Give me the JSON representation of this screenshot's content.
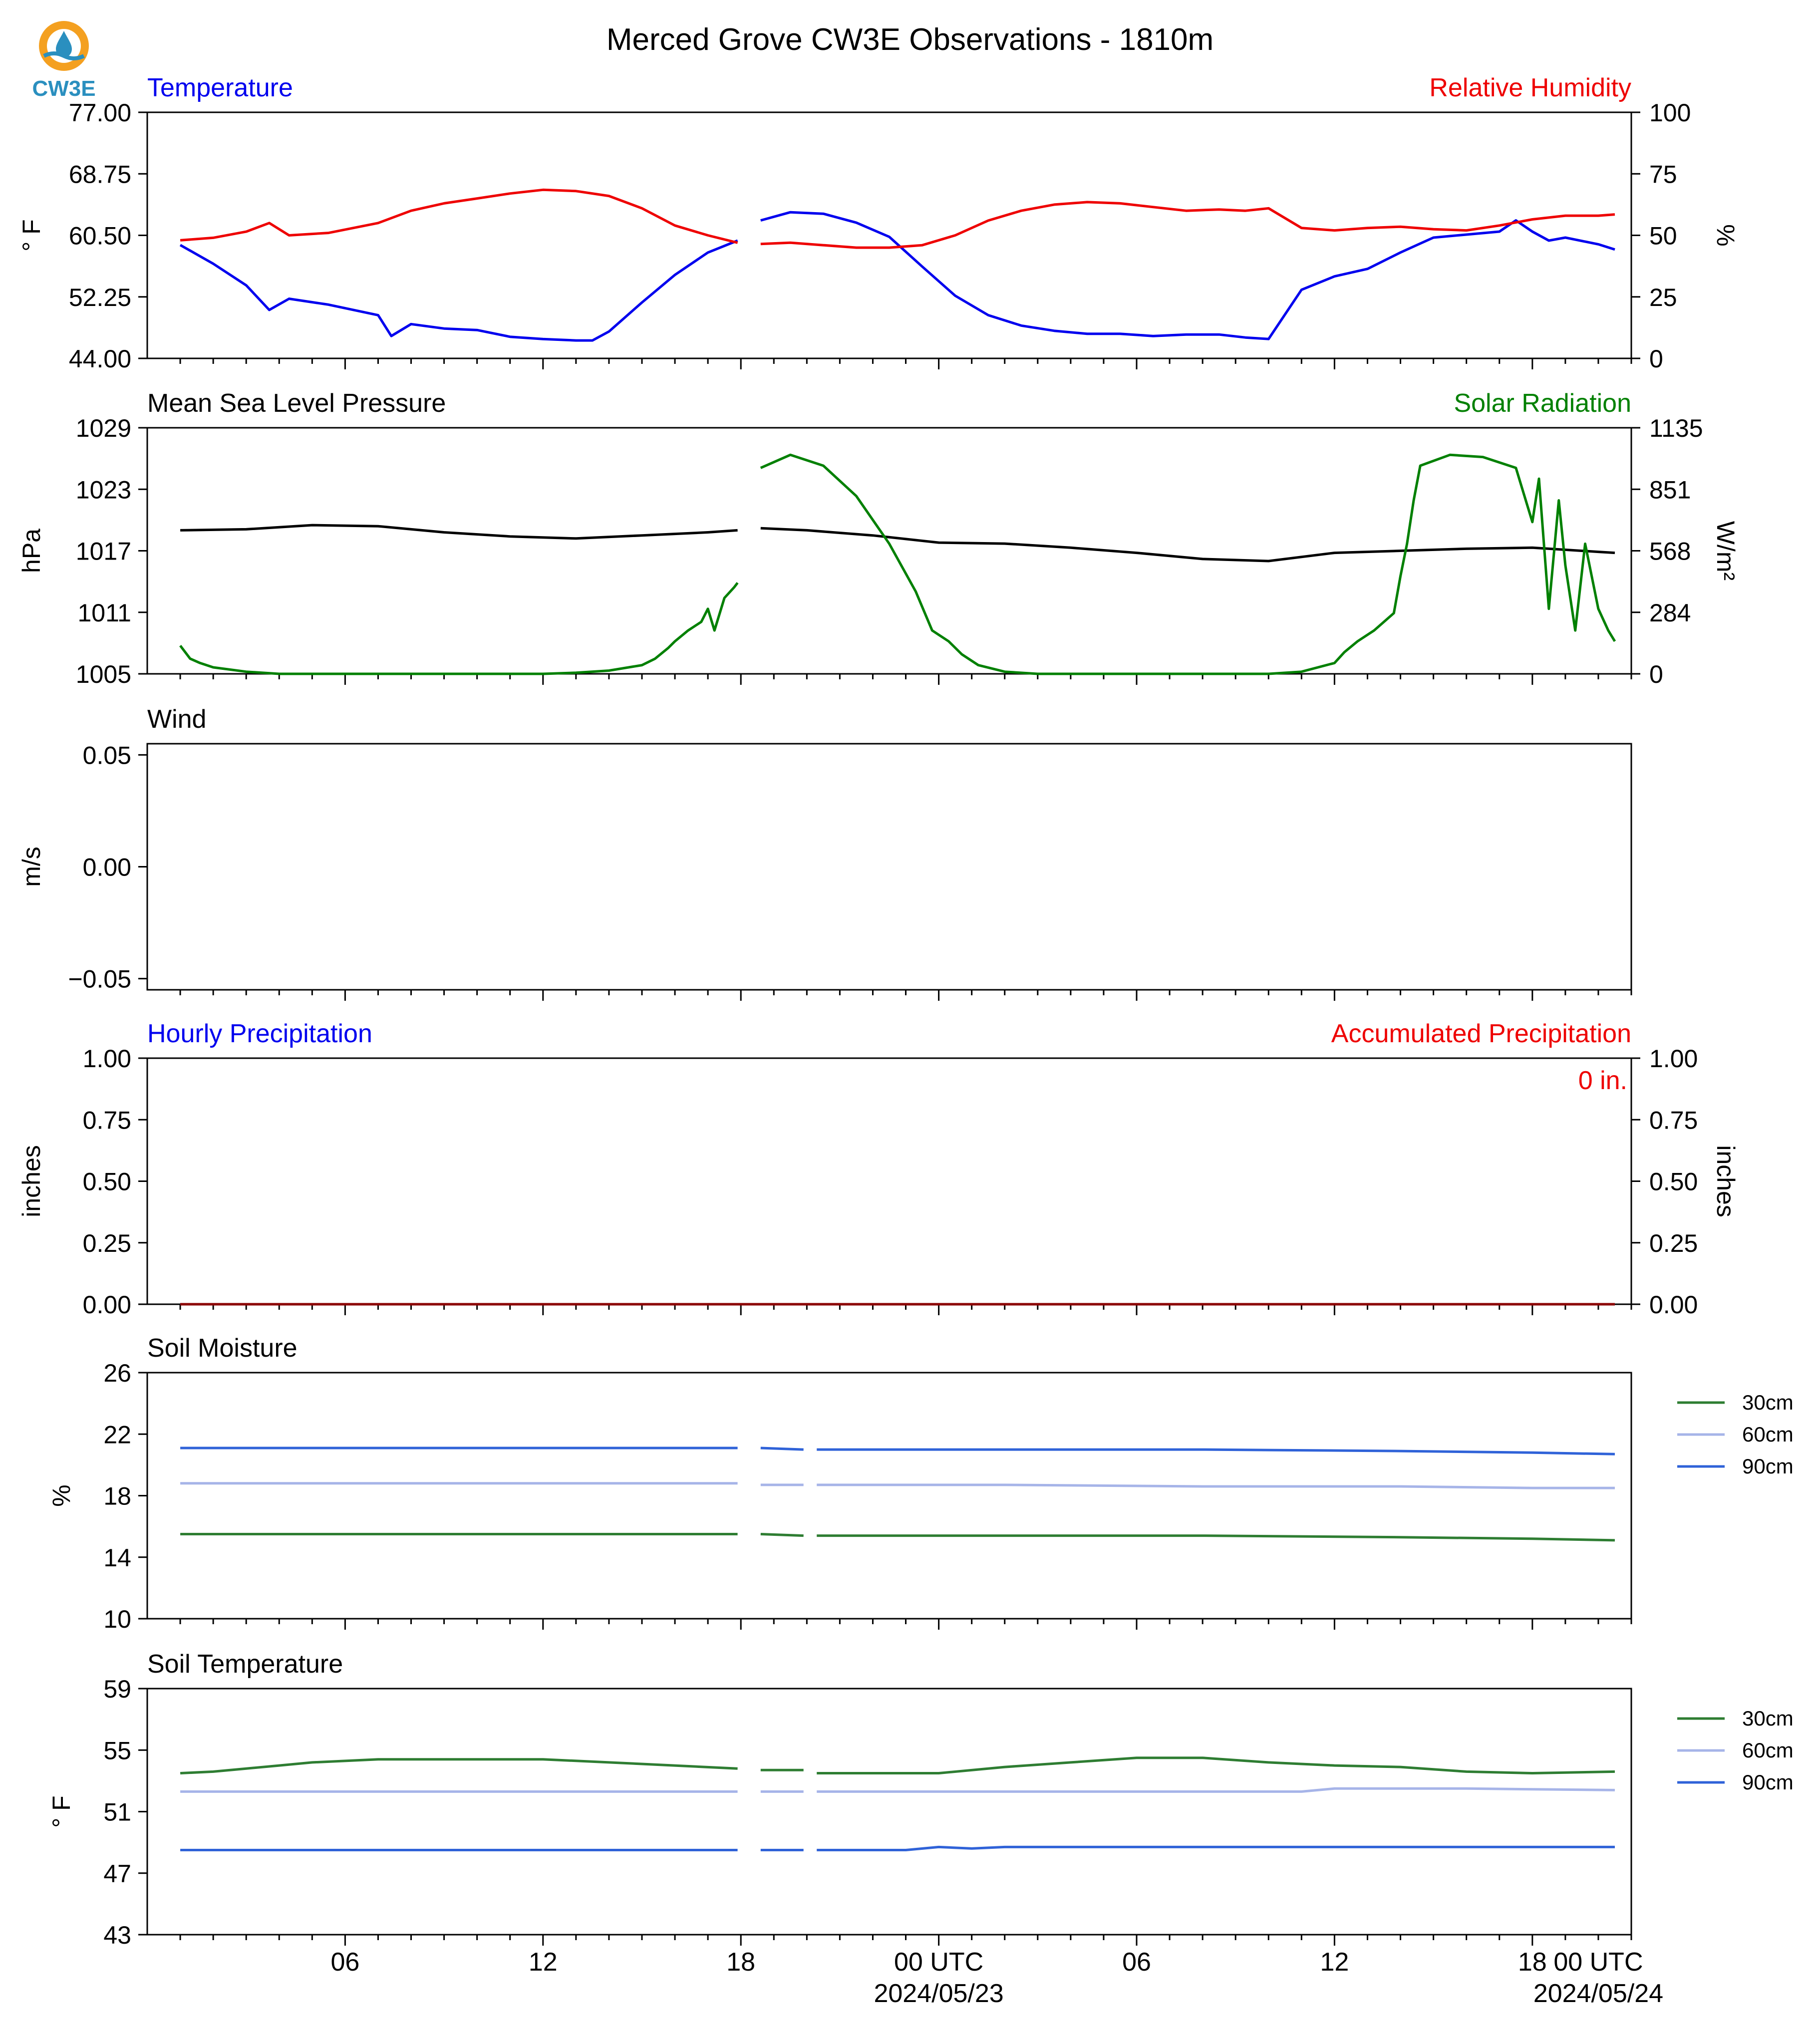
{
  "title": "Merced Grove CW3E Observations - 1810m",
  "logo": {
    "text": "CW3E",
    "ring_color": "#F4A020",
    "drop_color": "#2A8FBF",
    "text_color": "#2A8FBF"
  },
  "time_axis": {
    "hours": [
      "06",
      "12",
      "18",
      "00 UTC",
      "06",
      "12",
      "18",
      "00 UTC"
    ],
    "dates": [
      "2024/05/23",
      "2024/05/24"
    ]
  },
  "chart_data": [
    {
      "type": "line",
      "title_left": "Temperature",
      "title_right": "Relative Humidity",
      "ylabel_left": "° F",
      "ylabel_right": "%",
      "ylim_left": [
        44,
        77
      ],
      "ylim_right": [
        0,
        100
      ],
      "yticks_left": [
        "77.00",
        "68.75",
        "60.50",
        "52.25",
        "44.00"
      ],
      "yticks_right": [
        "100",
        "75",
        "50",
        "25",
        "0"
      ],
      "grid": false,
      "gap_hours": [
        17.9,
        18.6
      ],
      "series": [
        {
          "name": "Temperature",
          "axis": "left",
          "color": "#0000EE",
          "hours": [
            1,
            2,
            3,
            3.7,
            4.3,
            5.5,
            7,
            7.4,
            8,
            9,
            10,
            11,
            12,
            13,
            13.5,
            14,
            15,
            16,
            17,
            17.9,
            18.6,
            19.5,
            20.5,
            21.5,
            22.5,
            23.5,
            24.5,
            25.5,
            26.5,
            27.5,
            28.5,
            29.5,
            30.5,
            31.5,
            32.5,
            33.3,
            34,
            35,
            36,
            37,
            38,
            38.6,
            39,
            40,
            41,
            41.5,
            42,
            42.5,
            43,
            44,
            44.5
          ],
          "values": [
            59.2,
            56.7,
            53.8,
            50.5,
            52.0,
            51.2,
            49.8,
            47.0,
            48.6,
            48.0,
            47.8,
            46.9,
            46.6,
            46.4,
            46.4,
            47.6,
            51.5,
            55.2,
            58.2,
            59.8,
            62.5,
            63.6,
            63.4,
            62.2,
            60.3,
            56.3,
            52.4,
            49.8,
            48.4,
            47.7,
            47.3,
            47.3,
            47.0,
            47.2,
            47.2,
            46.8,
            46.6,
            53.2,
            55.0,
            56.0,
            58.2,
            59.4,
            60.2,
            60.6,
            61.0,
            62.5,
            61.0,
            59.8,
            60.2,
            59.3,
            58.6
          ]
        },
        {
          "name": "Relative Humidity",
          "axis": "right",
          "color": "#EE0000",
          "hours": [
            1,
            2,
            3,
            3.7,
            4.3,
            5.5,
            7,
            8,
            9,
            10,
            11,
            12,
            13,
            14,
            15,
            16,
            17,
            17.9,
            18.6,
            19.5,
            20.5,
            21.5,
            22.5,
            23.5,
            24.5,
            25.5,
            26.5,
            27.5,
            28.5,
            29.5,
            30.5,
            31.5,
            32.5,
            33.3,
            34,
            35,
            36,
            37,
            38,
            39,
            40,
            41,
            42,
            43,
            44,
            44.5
          ],
          "values": [
            48.0,
            49.0,
            51.5,
            55.0,
            50.0,
            51.0,
            55.0,
            60.0,
            63.0,
            65.0,
            67.0,
            68.5,
            68.0,
            66.0,
            61.0,
            54.0,
            50.0,
            47.0,
            46.5,
            47.0,
            46.0,
            45.0,
            45.0,
            46.0,
            50.0,
            56.0,
            60.0,
            62.5,
            63.5,
            63.0,
            61.5,
            60.0,
            60.5,
            60.0,
            61.0,
            53.0,
            52.0,
            53.0,
            53.5,
            52.5,
            52.0,
            54.0,
            56.5,
            58.0,
            58.0,
            58.5
          ]
        }
      ]
    },
    {
      "type": "line",
      "title_left": "Mean Sea Level Pressure",
      "title_right": "Solar Radiation",
      "ylabel_left": "hPa",
      "ylabel_right": "W/m²",
      "ylim_left": [
        1005,
        1029
      ],
      "ylim_right": [
        0,
        1135
      ],
      "yticks_left": [
        "1029",
        "1023",
        "1017",
        "1011",
        "1005"
      ],
      "yticks_right": [
        "1135",
        "851",
        "568",
        "284",
        "0"
      ],
      "grid": false,
      "gap_hours": [
        17.9,
        18.6
      ],
      "series": [
        {
          "name": "Mean Sea Level Pressure",
          "axis": "left",
          "color": "#000000",
          "hours": [
            1,
            3,
            5,
            7,
            9,
            11,
            13,
            15,
            17,
            17.9,
            18.6,
            20,
            22,
            24,
            26,
            28,
            30,
            32,
            34,
            36,
            38,
            40,
            42,
            44,
            44.5
          ],
          "values": [
            1019.0,
            1019.1,
            1019.5,
            1019.4,
            1018.8,
            1018.4,
            1018.2,
            1018.5,
            1018.8,
            1019.0,
            1019.2,
            1019.0,
            1018.5,
            1017.8,
            1017.7,
            1017.3,
            1016.8,
            1016.2,
            1016.0,
            1016.8,
            1017.0,
            1017.2,
            1017.3,
            1016.9,
            1016.8
          ]
        },
        {
          "name": "Solar Radiation",
          "axis": "right",
          "color": "#008000",
          "hours": [
            1,
            1.3,
            1.6,
            2,
            3,
            4,
            6,
            8,
            10,
            12,
            13,
            14,
            15,
            15.4,
            15.8,
            16,
            16.4,
            16.8,
            17,
            17.2,
            17.5,
            17.8,
            17.9,
            18.6,
            19.5,
            20.5,
            21.5,
            22.5,
            23.3,
            23.8,
            24,
            24.3,
            24.7,
            25.2,
            26,
            27,
            28,
            30,
            32,
            34,
            35,
            36,
            36.3,
            36.7,
            37.2,
            37.8,
            38,
            38.2,
            38.4,
            38.6,
            39.5,
            40.5,
            41.5,
            42,
            42.2,
            42.5,
            42.8,
            43,
            43.3,
            43.6,
            44,
            44.3,
            44.5
          ],
          "values": [
            130,
            70,
            50,
            30,
            10,
            0,
            0,
            0,
            0,
            0,
            5,
            15,
            40,
            70,
            120,
            150,
            200,
            240,
            300,
            200,
            350,
            400,
            420,
            950,
            1010,
            960,
            820,
            600,
            380,
            200,
            180,
            150,
            90,
            40,
            10,
            0,
            0,
            0,
            0,
            0,
            10,
            50,
            100,
            150,
            200,
            280,
            450,
            600,
            800,
            960,
            1010,
            1000,
            950,
            700,
            900,
            300,
            800,
            500,
            200,
            600,
            300,
            200,
            150
          ]
        }
      ]
    },
    {
      "type": "line",
      "title_left": "Wind",
      "ylabel_left": "m/s",
      "ylim_left": [
        -0.055,
        0.055
      ],
      "yticks_left": [
        "0.05",
        "0.00",
        "−0.05"
      ],
      "grid": false,
      "series": []
    },
    {
      "type": "bar",
      "title_left": "Hourly Precipitation",
      "title_right": "Accumulated Precipitation",
      "ylabel_left": "inches",
      "ylabel_right": "inches",
      "ylim_left": [
        0,
        1
      ],
      "ylim_right": [
        0,
        1
      ],
      "yticks_left": [
        "1.00",
        "0.75",
        "0.50",
        "0.25",
        "0.00"
      ],
      "yticks_right": [
        "1.00",
        "0.75",
        "0.50",
        "0.25",
        "0.00"
      ],
      "annotation": "0 in.",
      "grid": false,
      "series": [
        {
          "name": "Hourly Precipitation",
          "axis": "left",
          "color": "#0000EE",
          "hours": [
            1,
            44.5
          ],
          "values": [
            0,
            0
          ]
        },
        {
          "name": "Accumulated Precipitation",
          "axis": "right",
          "color": "#8B0000",
          "hours": [
            1,
            44.5
          ],
          "values": [
            0,
            0
          ]
        }
      ]
    },
    {
      "type": "line",
      "title_left": "Soil Moisture",
      "ylabel_left": "%",
      "ylim_left": [
        10,
        26
      ],
      "yticks_left": [
        "26",
        "22",
        "18",
        "14",
        "10"
      ],
      "legend": [
        "30cm",
        "60cm",
        "90cm"
      ],
      "legend_placement": "outside-right",
      "grid": false,
      "gap_hours": [
        [
          17.9,
          18.6
        ],
        [
          19.9,
          20.3
        ]
      ],
      "series": [
        {
          "name": "30cm",
          "axis": "left",
          "color": "#2E7D32",
          "hours": [
            1,
            6,
            12,
            17.9,
            18.6,
            19.9,
            20.3,
            26,
            32,
            38,
            42,
            44.5
          ],
          "values": [
            15.5,
            15.5,
            15.5,
            15.5,
            15.5,
            15.4,
            15.4,
            15.4,
            15.4,
            15.3,
            15.2,
            15.1
          ]
        },
        {
          "name": "60cm",
          "axis": "left",
          "color": "#A6B4E8",
          "hours": [
            1,
            6,
            12,
            17.9,
            18.6,
            19.9,
            20.3,
            26,
            32,
            38,
            42,
            44.5
          ],
          "values": [
            18.8,
            18.8,
            18.8,
            18.8,
            18.7,
            18.7,
            18.7,
            18.7,
            18.6,
            18.6,
            18.5,
            18.5
          ]
        },
        {
          "name": "90cm",
          "axis": "left",
          "color": "#2F62D8",
          "hours": [
            1,
            6,
            12,
            17.9,
            18.6,
            19.9,
            20.3,
            26,
            32,
            38,
            42,
            44.5
          ],
          "values": [
            21.1,
            21.1,
            21.1,
            21.1,
            21.1,
            21.0,
            21.0,
            21.0,
            21.0,
            20.9,
            20.8,
            20.7
          ]
        }
      ]
    },
    {
      "type": "line",
      "title_left": "Soil Temperature",
      "ylabel_left": "° F",
      "ylim_left": [
        43,
        59
      ],
      "yticks_left": [
        "59",
        "55",
        "51",
        "47",
        "43"
      ],
      "legend": [
        "30cm",
        "60cm",
        "90cm"
      ],
      "legend_placement": "outside-right",
      "grid": false,
      "gap_hours": [
        [
          17.9,
          18.6
        ],
        [
          19.9,
          20.3
        ]
      ],
      "series": [
        {
          "name": "30cm",
          "axis": "left",
          "color": "#2E7D32",
          "hours": [
            1,
            2,
            3,
            4,
            5,
            7,
            12,
            15,
            17.9,
            18.6,
            19.9,
            20.3,
            24,
            26,
            28,
            30,
            32,
            34,
            36,
            38,
            40,
            42,
            44.5
          ],
          "values": [
            53.5,
            53.6,
            53.8,
            54.0,
            54.2,
            54.4,
            54.4,
            54.1,
            53.8,
            53.7,
            53.7,
            53.5,
            53.5,
            53.9,
            54.2,
            54.5,
            54.5,
            54.2,
            54.0,
            53.9,
            53.6,
            53.5,
            53.6
          ]
        },
        {
          "name": "60cm",
          "axis": "left",
          "color": "#A6B4E8",
          "hours": [
            1,
            6,
            12,
            17.9,
            18.6,
            19.9,
            20.3,
            26,
            32,
            35,
            36,
            40,
            44.5
          ],
          "values": [
            52.3,
            52.3,
            52.3,
            52.3,
            52.3,
            52.3,
            52.3,
            52.3,
            52.3,
            52.3,
            52.5,
            52.5,
            52.4
          ]
        },
        {
          "name": "90cm",
          "axis": "left",
          "color": "#2F62D8",
          "hours": [
            1,
            6,
            12,
            17.9,
            18.6,
            19.9,
            20.3,
            23,
            24,
            25,
            26,
            32,
            38,
            44.5
          ],
          "values": [
            48.5,
            48.5,
            48.5,
            48.5,
            48.5,
            48.5,
            48.5,
            48.5,
            48.7,
            48.6,
            48.7,
            48.7,
            48.7,
            48.7
          ]
        }
      ]
    }
  ]
}
